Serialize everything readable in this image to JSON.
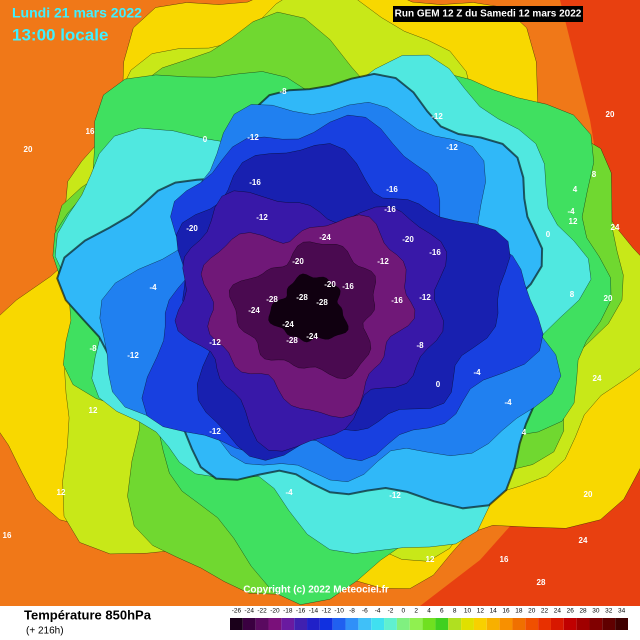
{
  "header": {
    "date": "Lundi 21 mars 2022",
    "time": "13:00 locale",
    "run": "Run GEM 12 Z du Samedi 12 mars 2022"
  },
  "copyright": "Copyright (c) 2022 Meteociel.fr",
  "footer": {
    "title": "Température 850hPa",
    "lead": "(+ 216h)"
  },
  "map": {
    "labels": [
      -12,
      -8,
      0,
      -12,
      -12,
      -16,
      -16,
      -20,
      -16,
      -24,
      -20,
      -28,
      -28,
      -28,
      -24,
      -28,
      -24,
      -20,
      -16,
      -12,
      -16,
      -12,
      -12,
      -24,
      -12,
      -8,
      -4,
      -20,
      -16,
      -12,
      -8,
      0,
      -4,
      -12,
      -4,
      -12,
      -4,
      4,
      12,
      12,
      16,
      20,
      16,
      20,
      24,
      20,
      24,
      24,
      28,
      12,
      8,
      4,
      -4,
      0,
      8,
      20,
      12,
      16
    ]
  },
  "colorbar": {
    "ticks": [
      -26,
      -24,
      -22,
      -20,
      -18,
      -16,
      -14,
      -12,
      -10,
      -8,
      -6,
      -4,
      -2,
      0,
      2,
      4,
      6,
      8,
      10,
      12,
      14,
      16,
      18,
      20,
      22,
      24,
      26,
      28,
      30,
      32,
      34
    ],
    "colors": [
      "#1a001a",
      "#3a0040",
      "#5a0a60",
      "#7a107a",
      "#6a1aa0",
      "#4020b0",
      "#2020c8",
      "#1030e0",
      "#2060f0",
      "#3090f8",
      "#40c0f8",
      "#40e0f0",
      "#60f0d0",
      "#80f080",
      "#90f050",
      "#70e020",
      "#40d020",
      "#b0e020",
      "#e0e000",
      "#f8d000",
      "#f8b000",
      "#f89000",
      "#f07000",
      "#f05000",
      "#e83000",
      "#d81800",
      "#c00000",
      "#a00000",
      "#800000",
      "#600000",
      "#400000"
    ]
  }
}
